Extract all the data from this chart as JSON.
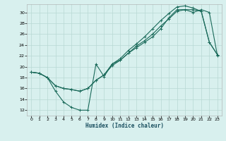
{
  "xlabel": "Humidex (Indice chaleur)",
  "background_color": "#d8f0ee",
  "grid_color": "#b8d8d4",
  "line_color": "#1a6a5a",
  "xlim": [
    -0.5,
    23.5
  ],
  "ylim": [
    11,
    31.5
  ],
  "xticks": [
    0,
    1,
    2,
    3,
    4,
    5,
    6,
    7,
    8,
    9,
    10,
    11,
    12,
    13,
    14,
    15,
    16,
    17,
    18,
    19,
    20,
    21,
    22,
    23
  ],
  "yticks": [
    12,
    14,
    16,
    18,
    20,
    22,
    24,
    26,
    28,
    30
  ],
  "line1_x": [
    0,
    1,
    2,
    3,
    4,
    5,
    6,
    7,
    8,
    9,
    10,
    11,
    12,
    13,
    14,
    15,
    16,
    17,
    18,
    19,
    20,
    21,
    22,
    23
  ],
  "line1_y": [
    19.0,
    18.8,
    18.0,
    15.5,
    13.5,
    12.5,
    12.0,
    12.0,
    20.5,
    18.2,
    20.5,
    21.2,
    22.5,
    23.5,
    24.5,
    25.5,
    27.0,
    29.0,
    30.5,
    30.5,
    30.0,
    30.5,
    30.0,
    22.0
  ],
  "line2_x": [
    0,
    1,
    2,
    3,
    4,
    5,
    6,
    7,
    8,
    9,
    10,
    11,
    12,
    13,
    14,
    15,
    16,
    17,
    18,
    19,
    20,
    21,
    22,
    23
  ],
  "line2_y": [
    19.0,
    18.8,
    18.0,
    16.5,
    16.0,
    15.8,
    15.5,
    16.0,
    17.5,
    18.5,
    20.2,
    21.2,
    22.5,
    23.8,
    24.8,
    26.0,
    27.5,
    28.8,
    30.2,
    30.5,
    30.5,
    30.2,
    24.5,
    22.2
  ],
  "line3_x": [
    0,
    1,
    2,
    3,
    4,
    5,
    6,
    7,
    8,
    9,
    10,
    11,
    12,
    13,
    14,
    15,
    16,
    17,
    18,
    19,
    20,
    21,
    22,
    23
  ],
  "line3_y": [
    19.0,
    18.8,
    18.0,
    16.5,
    16.0,
    15.8,
    15.5,
    16.0,
    17.5,
    18.5,
    20.5,
    21.5,
    23.0,
    24.2,
    25.5,
    27.0,
    28.5,
    29.8,
    31.0,
    31.2,
    30.8,
    30.2,
    24.5,
    22.2
  ]
}
